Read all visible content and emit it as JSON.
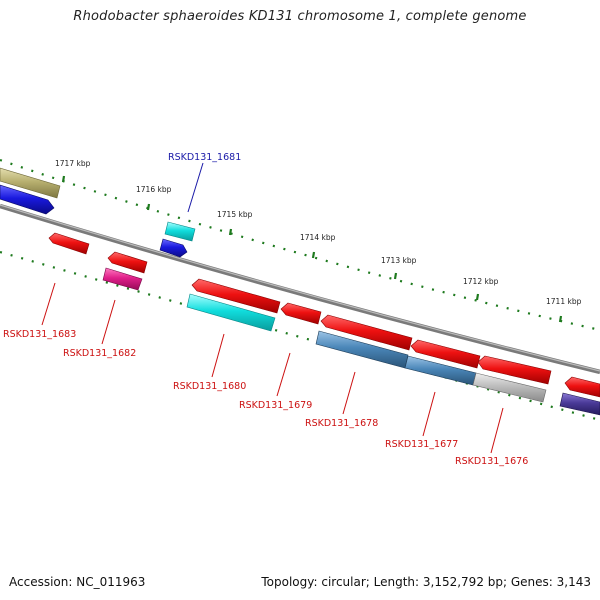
{
  "title": "Rhodobacter sphaeroides KD131 chromosome 1, complete genome",
  "footer": {
    "accession": "Accession: NC_011963",
    "summary": "Topology: circular; Length: 3,152,792 bp; Genes: 3,143"
  },
  "ticks": [
    {
      "label": "1717 kbp"
    },
    {
      "label": "1716 kbp"
    },
    {
      "label": "1715 kbp"
    },
    {
      "label": "1714 kbp"
    },
    {
      "label": "1713 kbp"
    },
    {
      "label": "1712 kbp"
    },
    {
      "label": "1711 kbp"
    }
  ],
  "gene_labels": [
    {
      "text": "RSKD131_1681",
      "color": "#1a1aa8"
    },
    {
      "text": "RSKD131_1683",
      "color": "#cc1111"
    },
    {
      "text": "RSKD131_1682",
      "color": "#cc1111"
    },
    {
      "text": "RSKD131_1680",
      "color": "#cc1111"
    },
    {
      "text": "RSKD131_1679",
      "color": "#cc1111"
    },
    {
      "text": "RSKD131_1678",
      "color": "#cc1111"
    },
    {
      "text": "RSKD131_1677",
      "color": "#cc1111"
    },
    {
      "text": "RSKD131_1676",
      "color": "#cc1111"
    }
  ],
  "colors": {
    "backbone": "#7a7a7a",
    "tick_dots": "#1e7a1e",
    "red": "#ee1111",
    "cyan": "#11dddd",
    "blue": "#1a1adf",
    "olive": "#b8b070",
    "magenta": "#e0208a",
    "steel": "#4a86b8",
    "gray": "#bdbdbd",
    "indigo": "#4a3a98"
  }
}
